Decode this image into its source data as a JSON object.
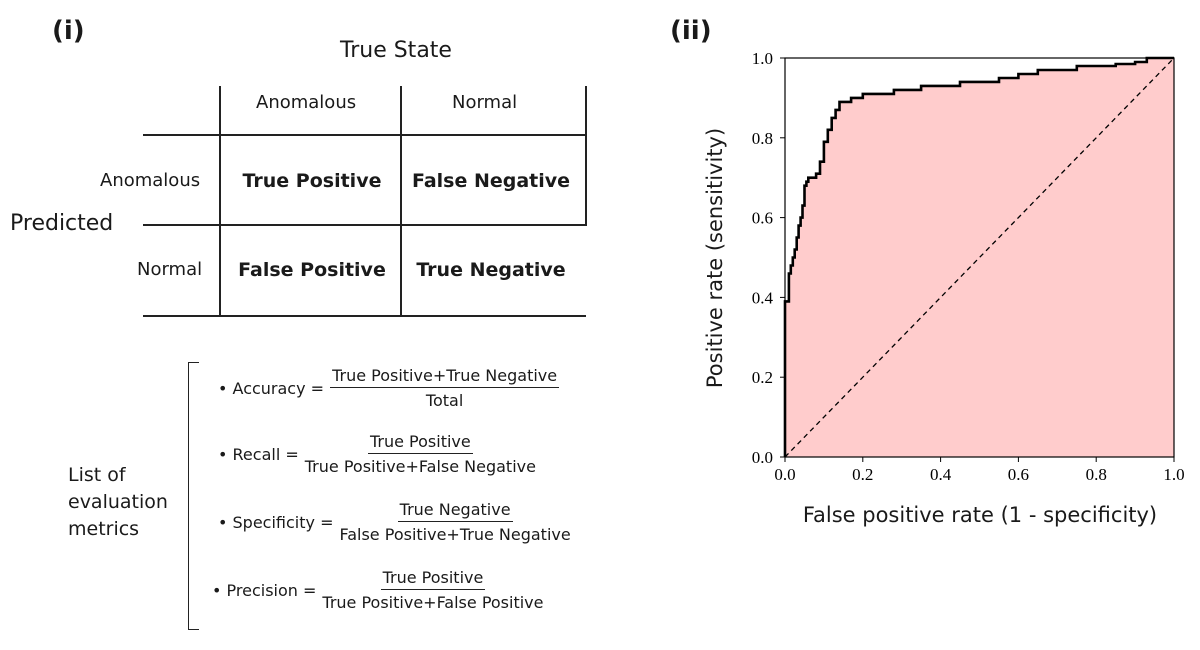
{
  "panel_i": {
    "label": "(i)",
    "true_state_label": "True State",
    "col_headers": [
      "Anomalous",
      "Normal"
    ],
    "predicted_label": "Predicted",
    "row_headers": [
      "Anomalous",
      "Normal"
    ],
    "cells": {
      "r0c0": "True Positive",
      "r0c1": "False Negative",
      "r1c0": "False Positive",
      "r1c1": "True Negative"
    },
    "metrics_title": [
      "List of",
      "evaluation",
      "metrics"
    ],
    "metrics": [
      {
        "name": "• Accuracy =",
        "numerator": "True Positive+True Negative",
        "denominator": "Total"
      },
      {
        "name": "• Recall =",
        "numerator": "True Positive",
        "denominator": "True Positive+False Negative"
      },
      {
        "name": "• Specificity =",
        "numerator": "True Negative",
        "denominator": "False Positive+True Negative"
      },
      {
        "name": "• Precision =",
        "numerator": "True Positive",
        "denominator": "True Positive+False Positive"
      }
    ]
  },
  "panel_ii": {
    "label": "(ii)"
  },
  "chart_data": {
    "type": "line",
    "xlabel": "False positive rate (1 - specificity)",
    "ylabel": "Positive rate (sensitivity)",
    "xlim": [
      0,
      1
    ],
    "ylim": [
      0,
      1
    ],
    "xticks": [
      "0.0",
      "0.2",
      "0.4",
      "0.6",
      "0.8",
      "1.0"
    ],
    "yticks": [
      "0.0",
      "0.2",
      "0.4",
      "0.6",
      "0.8",
      "1.0"
    ],
    "area_color": "#ffcccc",
    "curve_color": "#000000",
    "series": [
      {
        "style": "solid-step",
        "x": [
          0.0,
          0.0,
          0.01,
          0.01,
          0.015,
          0.02,
          0.025,
          0.03,
          0.035,
          0.04,
          0.045,
          0.05,
          0.055,
          0.06,
          0.08,
          0.09,
          0.1,
          0.11,
          0.12,
          0.13,
          0.14,
          0.17,
          0.2,
          0.28,
          0.35,
          0.45,
          0.55,
          0.6,
          0.65,
          0.75,
          0.8,
          0.85,
          0.9,
          0.93,
          0.95,
          1.0
        ],
        "y": [
          0.0,
          0.39,
          0.39,
          0.46,
          0.48,
          0.5,
          0.52,
          0.55,
          0.58,
          0.6,
          0.63,
          0.68,
          0.69,
          0.7,
          0.71,
          0.74,
          0.79,
          0.82,
          0.85,
          0.87,
          0.89,
          0.9,
          0.91,
          0.92,
          0.93,
          0.94,
          0.95,
          0.96,
          0.97,
          0.98,
          0.98,
          0.985,
          0.99,
          1.0,
          1.0,
          1.0
        ]
      },
      {
        "style": "dashed",
        "x": [
          0.0,
          1.0
        ],
        "y": [
          0.0,
          1.0
        ]
      }
    ]
  }
}
